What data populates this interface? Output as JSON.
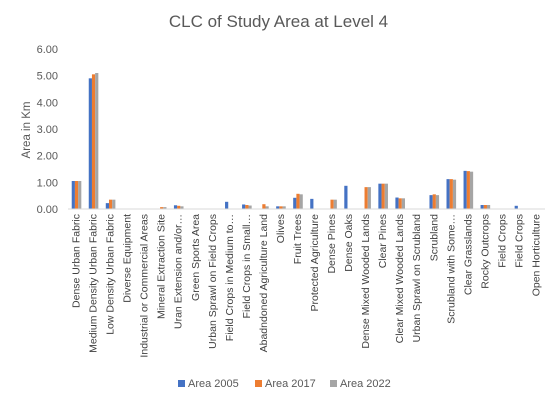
{
  "chart_data": {
    "type": "bar",
    "title": "CLC of Study Area at Level 4",
    "ylabel": "Area in Km",
    "xlabel": "",
    "ylim": [
      0,
      6
    ],
    "yticks": [
      "0.00",
      "1.00",
      "2.00",
      "3.00",
      "4.00",
      "5.00",
      "6.00"
    ],
    "legend_position": "bottom",
    "grid": false,
    "categories": [
      "Dense Urban Fabric",
      "Medium Density Urban Fabric",
      "Low Density Urban Fabric",
      "Diverse Equipment",
      "Industrial or Commercial Areas",
      "Mineral Extraction Site",
      "Uran Extension and/or…",
      "Green Sports Area",
      "Urban Sprawl on Field Crops",
      "Field Crops in Medium to…",
      "Field Crops in Small…",
      "Abadndoned Agriculture Land",
      "Olives",
      "Fruit Trees",
      "Protected Agriculture",
      "Dense Pines",
      "Dense Oaks",
      "Dense Mixed Wooded Lands",
      "Clear Pines",
      "Clear Mixed Wooded Lands",
      "Urban Sprawl on Scrubland",
      "Scrubland",
      "Scrubland with Some…",
      "Clear Grasslands",
      "Rocky Outcrops",
      "Field Crops",
      "Field Crops",
      "Open Horticulture"
    ],
    "series": [
      {
        "name": "Area 2005",
        "color": "#4472C4",
        "values": [
          1.05,
          4.9,
          0.22,
          0,
          0,
          0,
          0.14,
          0,
          0,
          0.27,
          0.17,
          0,
          0.1,
          0.42,
          0.38,
          0,
          0.87,
          0,
          0.95,
          0.43,
          0,
          0.52,
          1.12,
          1.43,
          0.15,
          0,
          0.12,
          0
        ]
      },
      {
        "name": "Area 2017",
        "color": "#ED7D31",
        "values": [
          1.05,
          5.05,
          0.35,
          0,
          0,
          0.07,
          0.12,
          0,
          0,
          0,
          0.15,
          0.18,
          0.1,
          0.57,
          0,
          0.35,
          0,
          0.82,
          0.95,
          0.4,
          0,
          0.55,
          1.12,
          1.42,
          0.15,
          0,
          0,
          0
        ]
      },
      {
        "name": "Area 2022",
        "color": "#A5A5A5",
        "values": [
          1.05,
          5.1,
          0.35,
          0,
          0,
          0.07,
          0.1,
          0,
          0,
          0,
          0.13,
          0.1,
          0.1,
          0.55,
          0,
          0.35,
          0,
          0.82,
          0.95,
          0.4,
          0,
          0.52,
          1.1,
          1.4,
          0.15,
          0,
          0,
          0
        ]
      }
    ]
  }
}
